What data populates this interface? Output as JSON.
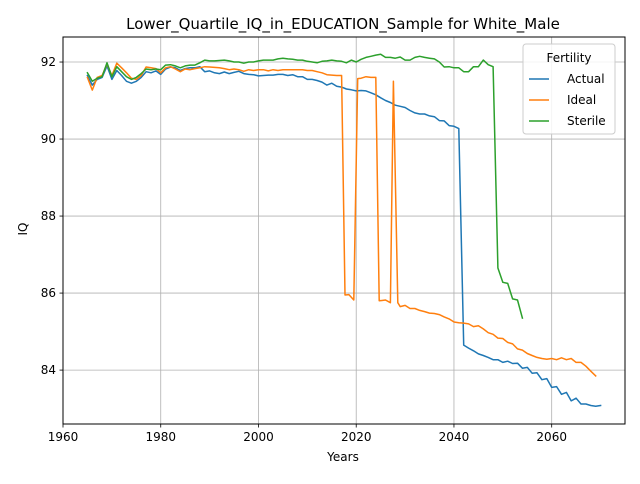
{
  "chart_data": {
    "type": "line",
    "title": "Lower_Quartile_IQ_in_EDUCATION_Sample for White_Male",
    "xlabel": "Years",
    "ylabel": "IQ",
    "xlim": [
      1960,
      2075
    ],
    "ylim": [
      82.6,
      92.65
    ],
    "xticks": [
      1960,
      1980,
      2000,
      2020,
      2040,
      2060
    ],
    "yticks": [
      84,
      86,
      88,
      90,
      92
    ],
    "grid": true,
    "legend": {
      "title": "Fertility",
      "placement": "top-right"
    },
    "series": [
      {
        "name": "Actual",
        "color": "#1f77b4",
        "points": [
          [
            1965,
            91.65
          ],
          [
            1966,
            91.4
          ],
          [
            1967,
            91.55
          ],
          [
            1968,
            91.6
          ],
          [
            1969,
            91.9
          ],
          [
            1970,
            91.55
          ],
          [
            1971,
            91.78
          ],
          [
            1972,
            91.65
          ],
          [
            1973,
            91.5
          ],
          [
            1974,
            91.45
          ],
          [
            1975,
            91.5
          ],
          [
            1976,
            91.6
          ],
          [
            1977,
            91.75
          ],
          [
            1978,
            91.72
          ],
          [
            1979,
            91.77
          ],
          [
            1980,
            91.68
          ],
          [
            1981,
            91.82
          ],
          [
            1982,
            91.87
          ],
          [
            1983,
            91.85
          ],
          [
            1984,
            91.78
          ],
          [
            1985,
            91.83
          ],
          [
            1986,
            91.85
          ],
          [
            1987,
            91.85
          ],
          [
            1988,
            91.88
          ],
          [
            1989,
            91.75
          ],
          [
            1990,
            91.77
          ],
          [
            1991,
            91.72
          ],
          [
            1992,
            91.7
          ],
          [
            1993,
            91.74
          ],
          [
            1994,
            91.7
          ],
          [
            1995,
            91.73
          ],
          [
            1996,
            91.76
          ],
          [
            1997,
            91.7
          ],
          [
            1998,
            91.68
          ],
          [
            1999,
            91.67
          ],
          [
            2000,
            91.64
          ],
          [
            2001,
            91.65
          ],
          [
            2002,
            91.66
          ],
          [
            2003,
            91.66
          ],
          [
            2004,
            91.68
          ],
          [
            2005,
            91.68
          ],
          [
            2006,
            91.65
          ],
          [
            2007,
            91.67
          ],
          [
            2008,
            91.62
          ],
          [
            2009,
            91.62
          ],
          [
            2010,
            91.55
          ],
          [
            2011,
            91.55
          ],
          [
            2012,
            91.52
          ],
          [
            2013,
            91.48
          ],
          [
            2014,
            91.4
          ],
          [
            2015,
            91.45
          ],
          [
            2016,
            91.37
          ],
          [
            2017,
            91.35
          ],
          [
            2018,
            91.3
          ],
          [
            2019,
            91.28
          ],
          [
            2020,
            91.25
          ],
          [
            2021,
            91.26
          ],
          [
            2022,
            91.25
          ],
          [
            2023,
            91.2
          ],
          [
            2024,
            91.15
          ],
          [
            2025,
            91.07
          ],
          [
            2026,
            91.0
          ],
          [
            2027,
            90.95
          ],
          [
            2028,
            90.88
          ],
          [
            2029,
            90.85
          ],
          [
            2030,
            90.82
          ],
          [
            2031,
            90.74
          ],
          [
            2032,
            90.68
          ],
          [
            2033,
            90.65
          ],
          [
            2034,
            90.65
          ],
          [
            2035,
            90.6
          ],
          [
            2036,
            90.58
          ],
          [
            2037,
            90.48
          ],
          [
            2038,
            90.47
          ],
          [
            2039,
            90.35
          ],
          [
            2040,
            90.33
          ],
          [
            2041,
            90.27
          ],
          [
            2042,
            84.65
          ],
          [
            2043,
            84.57
          ],
          [
            2044,
            84.5
          ],
          [
            2045,
            84.42
          ],
          [
            2046,
            84.38
          ],
          [
            2047,
            84.33
          ],
          [
            2048,
            84.27
          ],
          [
            2049,
            84.27
          ],
          [
            2050,
            84.2
          ],
          [
            2051,
            84.23
          ],
          [
            2052,
            84.17
          ],
          [
            2053,
            84.18
          ],
          [
            2054,
            84.05
          ],
          [
            2055,
            84.07
          ],
          [
            2056,
            83.92
          ],
          [
            2057,
            83.93
          ],
          [
            2058,
            83.75
          ],
          [
            2059,
            83.78
          ],
          [
            2060,
            83.55
          ],
          [
            2061,
            83.57
          ],
          [
            2062,
            83.37
          ],
          [
            2063,
            83.42
          ],
          [
            2064,
            83.2
          ],
          [
            2065,
            83.27
          ],
          [
            2066,
            83.12
          ],
          [
            2067,
            83.12
          ],
          [
            2068,
            83.08
          ],
          [
            2069,
            83.06
          ],
          [
            2070,
            83.08
          ]
        ]
      },
      {
        "name": "Ideal",
        "color": "#ff7f0e",
        "points": [
          [
            1965,
            91.6
          ],
          [
            1966,
            91.27
          ],
          [
            1967,
            91.6
          ],
          [
            1968,
            91.65
          ],
          [
            1969,
            91.95
          ],
          [
            1970,
            91.65
          ],
          [
            1971,
            91.97
          ],
          [
            1972,
            91.85
          ],
          [
            1973,
            91.72
          ],
          [
            1974,
            91.58
          ],
          [
            1975,
            91.55
          ],
          [
            1976,
            91.65
          ],
          [
            1977,
            91.87
          ],
          [
            1978,
            91.85
          ],
          [
            1979,
            91.83
          ],
          [
            1980,
            91.72
          ],
          [
            1981,
            91.85
          ],
          [
            1982,
            91.88
          ],
          [
            1983,
            91.82
          ],
          [
            1984,
            91.75
          ],
          [
            1985,
            91.82
          ],
          [
            1986,
            91.8
          ],
          [
            1987,
            91.83
          ],
          [
            1988,
            91.85
          ],
          [
            1989,
            91.88
          ],
          [
            1990,
            91.87
          ],
          [
            1991,
            91.86
          ],
          [
            1992,
            91.85
          ],
          [
            1993,
            91.83
          ],
          [
            1994,
            91.8
          ],
          [
            1995,
            91.82
          ],
          [
            1996,
            91.8
          ],
          [
            1997,
            91.76
          ],
          [
            1998,
            91.8
          ],
          [
            1999,
            91.78
          ],
          [
            2000,
            91.8
          ],
          [
            2001,
            91.8
          ],
          [
            2002,
            91.77
          ],
          [
            2003,
            91.8
          ],
          [
            2004,
            91.78
          ],
          [
            2005,
            91.8
          ],
          [
            2006,
            91.8
          ],
          [
            2007,
            91.8
          ],
          [
            2008,
            91.8
          ],
          [
            2009,
            91.8
          ],
          [
            2010,
            91.78
          ],
          [
            2011,
            91.78
          ],
          [
            2012,
            91.75
          ],
          [
            2013,
            91.72
          ],
          [
            2014,
            91.67
          ],
          [
            2015,
            91.66
          ],
          [
            2016,
            91.65
          ],
          [
            2017,
            91.65
          ],
          [
            2017.7,
            85.95
          ],
          [
            2018.5,
            85.96
          ],
          [
            2019.5,
            85.82
          ],
          [
            2020.3,
            91.57
          ],
          [
            2021,
            91.58
          ],
          [
            2022,
            91.62
          ],
          [
            2023,
            91.6
          ],
          [
            2024,
            91.6
          ],
          [
            2024.7,
            85.8
          ],
          [
            2026,
            85.82
          ],
          [
            2027,
            85.75
          ],
          [
            2027.6,
            91.5
          ],
          [
            2028.5,
            85.75
          ],
          [
            2029,
            85.65
          ],
          [
            2030,
            85.68
          ],
          [
            2031,
            85.6
          ],
          [
            2032,
            85.6
          ],
          [
            2033,
            85.55
          ],
          [
            2034,
            85.52
          ],
          [
            2035,
            85.48
          ],
          [
            2036,
            85.47
          ],
          [
            2037,
            85.44
          ],
          [
            2038,
            85.38
          ],
          [
            2039,
            85.33
          ],
          [
            2040,
            85.25
          ],
          [
            2041,
            85.23
          ],
          [
            2042,
            85.22
          ],
          [
            2043,
            85.2
          ],
          [
            2044,
            85.13
          ],
          [
            2045,
            85.15
          ],
          [
            2046,
            85.07
          ],
          [
            2047,
            84.97
          ],
          [
            2048,
            84.93
          ],
          [
            2049,
            84.83
          ],
          [
            2050,
            84.82
          ],
          [
            2051,
            84.72
          ],
          [
            2052,
            84.68
          ],
          [
            2053,
            84.55
          ],
          [
            2054,
            84.52
          ],
          [
            2055,
            84.43
          ],
          [
            2056,
            84.38
          ],
          [
            2057,
            84.33
          ],
          [
            2058,
            84.3
          ],
          [
            2059,
            84.28
          ],
          [
            2060,
            84.3
          ],
          [
            2061,
            84.27
          ],
          [
            2062,
            84.32
          ],
          [
            2063,
            84.27
          ],
          [
            2064,
            84.3
          ],
          [
            2065,
            84.2
          ],
          [
            2066,
            84.2
          ],
          [
            2067,
            84.1
          ],
          [
            2068,
            83.97
          ],
          [
            2069,
            83.85
          ]
        ]
      },
      {
        "name": "Sterile",
        "color": "#2ca02c",
        "points": [
          [
            1965,
            91.72
          ],
          [
            1966,
            91.5
          ],
          [
            1967,
            91.58
          ],
          [
            1968,
            91.62
          ],
          [
            1969,
            91.98
          ],
          [
            1970,
            91.62
          ],
          [
            1971,
            91.88
          ],
          [
            1972,
            91.75
          ],
          [
            1973,
            91.62
          ],
          [
            1974,
            91.55
          ],
          [
            1975,
            91.6
          ],
          [
            1976,
            91.7
          ],
          [
            1977,
            91.82
          ],
          [
            1978,
            91.8
          ],
          [
            1979,
            91.82
          ],
          [
            1980,
            91.8
          ],
          [
            1981,
            91.92
          ],
          [
            1982,
            91.93
          ],
          [
            1983,
            91.9
          ],
          [
            1984,
            91.85
          ],
          [
            1985,
            91.9
          ],
          [
            1986,
            91.92
          ],
          [
            1987,
            91.92
          ],
          [
            1988,
            91.98
          ],
          [
            1989,
            92.05
          ],
          [
            1990,
            92.03
          ],
          [
            1991,
            92.03
          ],
          [
            1992,
            92.04
          ],
          [
            1993,
            92.05
          ],
          [
            1994,
            92.03
          ],
          [
            1995,
            92.0
          ],
          [
            1996,
            92.0
          ],
          [
            1997,
            91.97
          ],
          [
            1998,
            92.0
          ],
          [
            1999,
            92.0
          ],
          [
            2000,
            92.03
          ],
          [
            2001,
            92.05
          ],
          [
            2002,
            92.05
          ],
          [
            2003,
            92.05
          ],
          [
            2004,
            92.08
          ],
          [
            2005,
            92.1
          ],
          [
            2006,
            92.08
          ],
          [
            2007,
            92.07
          ],
          [
            2008,
            92.05
          ],
          [
            2009,
            92.05
          ],
          [
            2010,
            92.02
          ],
          [
            2011,
            92.0
          ],
          [
            2012,
            91.98
          ],
          [
            2013,
            92.02
          ],
          [
            2014,
            92.03
          ],
          [
            2015,
            92.05
          ],
          [
            2016,
            92.03
          ],
          [
            2017,
            92.02
          ],
          [
            2018,
            91.98
          ],
          [
            2019,
            92.05
          ],
          [
            2020,
            92.0
          ],
          [
            2021,
            92.07
          ],
          [
            2022,
            92.12
          ],
          [
            2023,
            92.15
          ],
          [
            2024,
            92.18
          ],
          [
            2025,
            92.2
          ],
          [
            2026,
            92.12
          ],
          [
            2027,
            92.12
          ],
          [
            2028,
            92.1
          ],
          [
            2029,
            92.13
          ],
          [
            2030,
            92.05
          ],
          [
            2031,
            92.05
          ],
          [
            2032,
            92.12
          ],
          [
            2033,
            92.15
          ],
          [
            2034,
            92.12
          ],
          [
            2035,
            92.1
          ],
          [
            2036,
            92.08
          ],
          [
            2037,
            92.0
          ],
          [
            2038,
            91.87
          ],
          [
            2039,
            91.88
          ],
          [
            2040,
            91.85
          ],
          [
            2041,
            91.85
          ],
          [
            2042,
            91.75
          ],
          [
            2043,
            91.75
          ],
          [
            2044,
            91.88
          ],
          [
            2045,
            91.88
          ],
          [
            2046,
            92.05
          ],
          [
            2047,
            91.93
          ],
          [
            2048,
            91.88
          ],
          [
            2049,
            86.65
          ],
          [
            2050,
            86.28
          ],
          [
            2051,
            86.25
          ],
          [
            2052,
            85.85
          ],
          [
            2053,
            85.82
          ],
          [
            2054,
            85.35
          ]
        ]
      }
    ]
  }
}
